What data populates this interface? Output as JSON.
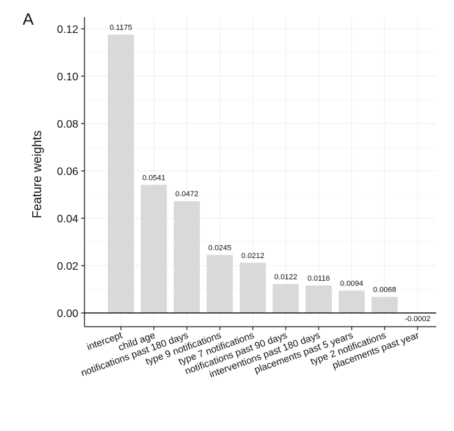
{
  "panel_letter": "A",
  "chart_data": {
    "type": "bar",
    "title": "",
    "xlabel": "",
    "ylabel": "Feature weights",
    "ylim": [
      -0.006,
      0.124
    ],
    "yticks": [
      0.0,
      0.02,
      0.04,
      0.06,
      0.08,
      0.1,
      0.12
    ],
    "ytick_labels": [
      "0.00",
      "0.02",
      "0.04",
      "0.06",
      "0.08",
      "0.10",
      "0.12"
    ],
    "grid": true,
    "categories": [
      "intercept",
      "child age",
      "notifications past 180 days",
      "type 9 notifications",
      "type 7 notifications",
      "notifications past 90 days",
      "interventions past 180 days",
      "placements past 5 years",
      "type 2 notifications",
      "placements past year"
    ],
    "values": [
      0.1175,
      0.0541,
      0.0472,
      0.0245,
      0.0212,
      0.0122,
      0.0116,
      0.0094,
      0.0068,
      -0.0002
    ],
    "data_labels": [
      "0.1175",
      "0.0541",
      "0.0472",
      "0.0245",
      "0.0212",
      "0.0122",
      "0.0116",
      "0.0094",
      "0.0068",
      "-0.0002"
    ],
    "colors": {
      "bar": "#d9d9d9",
      "axis": "#111111",
      "grid": "#ececec"
    }
  }
}
